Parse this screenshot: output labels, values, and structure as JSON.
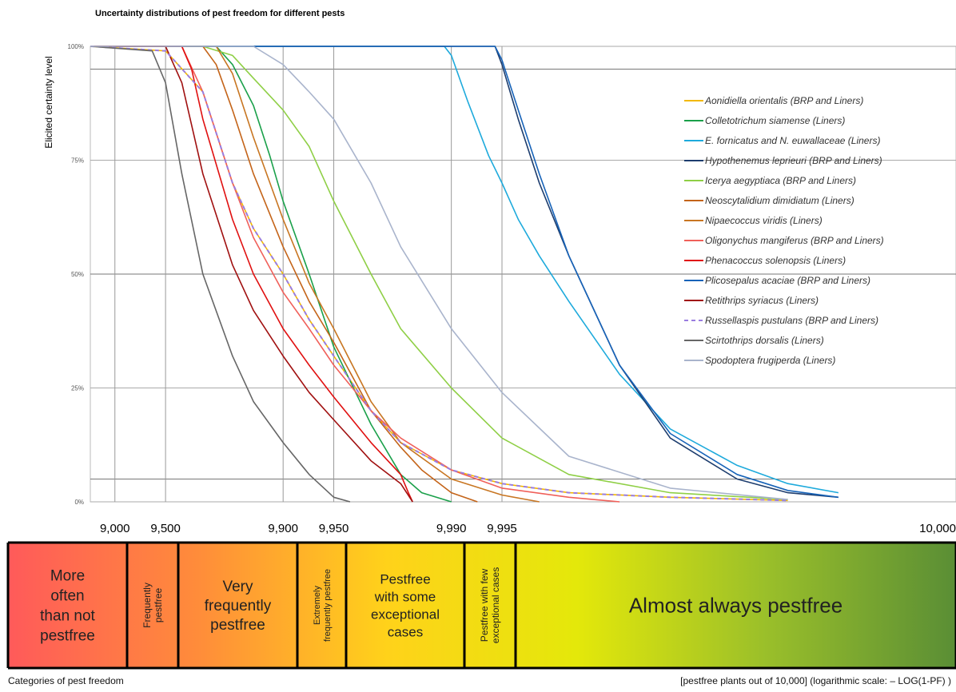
{
  "chart_data": {
    "type": "line",
    "title": "Uncertainty distributions of pest freedom for different pests",
    "ylabel": "Elicited certainty level",
    "ylim": [
      0,
      100
    ],
    "y_ticks": [
      "0%",
      "25%",
      "50%",
      "75%",
      "100%"
    ],
    "y_tick_values": [
      0,
      25,
      50,
      75,
      100
    ],
    "x_scale": "log (–LOG(1-PF))",
    "x_tick_labels": [
      "9,000",
      "9,500",
      "9,900",
      "9,950",
      "9,990",
      "9,995",
      "10,000"
    ],
    "x_tick_values": [
      9000,
      9500,
      9900,
      9950,
      9990,
      9995,
      10000
    ],
    "hlines": [
      95,
      50,
      5
    ],
    "legend_position": "right",
    "series": [
      {
        "name": "Aonidiella orientalis (BRP and Liners)",
        "color": "#f2b800",
        "dash": false,
        "x": [
          8600,
          9500,
          9700,
          9800,
          9850,
          9900,
          9930,
          9950,
          9970,
          9980,
          9990,
          9995,
          9998,
          9999.5,
          9999.9
        ],
        "y": [
          100,
          99,
          90,
          70,
          60,
          50,
          40,
          32,
          20,
          13,
          7,
          4,
          2,
          1,
          0.3
        ]
      },
      {
        "name": "Colletotrichum siamense (Liners)",
        "color": "#1aa04a",
        "dash": false,
        "x": [
          8600,
          9750,
          9800,
          9850,
          9880,
          9900,
          9930,
          9950,
          9970,
          9980,
          9985,
          9990
        ],
        "y": [
          100,
          100,
          96,
          87,
          76,
          66,
          50,
          34,
          17,
          6,
          2,
          0
        ]
      },
      {
        "name": "E. fornicatus and N. euwallaceae  (Liners)",
        "color": "#1eaadc",
        "dash": false,
        "x": [
          8600,
          9989,
          9990,
          9992,
          9994,
          9995,
          9996,
          9997,
          9998,
          9999,
          9999.5,
          9999.8,
          9999.9,
          9999.95
        ],
        "y": [
          100,
          100,
          98,
          88,
          76,
          70,
          62,
          54,
          44,
          28,
          16,
          8,
          4,
          2
        ]
      },
      {
        "name": "Hypothenemus leprieuri (BRP and Liners)",
        "color": "#1d3d6e",
        "dash": false,
        "x": [
          8600,
          9994.5,
          9995,
          9996,
          9997,
          9998,
          9999,
          9999.5,
          9999.8,
          9999.9,
          9999.95
        ],
        "y": [
          100,
          100,
          96,
          84,
          70,
          54,
          30,
          14,
          5,
          2,
          1
        ]
      },
      {
        "name": "Icerya aegyptiaca (BRP and Liners)",
        "color": "#8fcf46",
        "dash": false,
        "x": [
          8600,
          9700,
          9800,
          9850,
          9900,
          9930,
          9950,
          9970,
          9980,
          9990,
          9995,
          9998,
          9999.5,
          9999.9
        ],
        "y": [
          100,
          100,
          98,
          93,
          86,
          78,
          66,
          50,
          38,
          25,
          14,
          6,
          2,
          0.5
        ]
      },
      {
        "name": "Neoscytalidium dimidiatum (Liners)",
        "color": "#c46419",
        "dash": false,
        "x": [
          8600,
          9700,
          9750,
          9800,
          9850,
          9900,
          9930,
          9950,
          9970,
          9980,
          9985,
          9990,
          9993
        ],
        "y": [
          100,
          100,
          96,
          86,
          72,
          56,
          44,
          35,
          20,
          12,
          7,
          2,
          0
        ]
      },
      {
        "name": "Nipaecoccus viridis (Liners)",
        "color": "#c87622",
        "dash": false,
        "x": [
          8600,
          9750,
          9800,
          9850,
          9900,
          9930,
          9950,
          9970,
          9980,
          9990,
          9995,
          9997
        ],
        "y": [
          100,
          100,
          94,
          80,
          62,
          48,
          38,
          22,
          13,
          5,
          1.5,
          0
        ]
      },
      {
        "name": "Oligonychus mangiferus (BRP and Liners)",
        "color": "#f0605a",
        "dash": false,
        "x": [
          8600,
          9600,
          9700,
          9800,
          9850,
          9900,
          9930,
          9950,
          9970,
          9980,
          9990,
          9995,
          9998,
          9999
        ],
        "y": [
          100,
          100,
          90,
          70,
          58,
          46,
          38,
          30,
          20,
          14,
          7,
          3,
          1,
          0
        ]
      },
      {
        "name": "Phenacoccus solenopsis (Liners)",
        "color": "#e01010",
        "dash": false,
        "x": [
          8600,
          9600,
          9650,
          9700,
          9800,
          9850,
          9900,
          9930,
          9950,
          9970,
          9980,
          9982,
          9983
        ],
        "y": [
          100,
          100,
          95,
          84,
          62,
          50,
          38,
          30,
          23,
          13,
          6,
          2,
          0
        ]
      },
      {
        "name": "Plicosepalus acaciae (BRP and Liners)",
        "color": "#1763b8",
        "dash": false,
        "x": [
          8600,
          9994.5,
          9995,
          9996,
          9997,
          9998,
          9999,
          9999.5,
          9999.8,
          9999.9,
          9999.95
        ],
        "y": [
          100,
          100,
          97,
          86,
          72,
          54,
          30,
          15,
          6,
          2.5,
          1
        ]
      },
      {
        "name": "Retithrips syriacus (Liners)",
        "color": "#a01010",
        "dash": false,
        "x": [
          8600,
          9500,
          9600,
          9700,
          9800,
          9850,
          9900,
          9930,
          9950,
          9970,
          9980,
          9983
        ],
        "y": [
          100,
          100,
          92,
          72,
          52,
          42,
          32,
          24,
          18,
          9,
          4,
          0
        ]
      },
      {
        "name": "Russellaspis pustulans (BRP and Liners)",
        "color": "#9a7de0",
        "dash": true,
        "x": [
          8600,
          9500,
          9700,
          9800,
          9850,
          9900,
          9930,
          9950,
          9970,
          9980,
          9990,
          9995,
          9998,
          9999.5,
          9999.9
        ],
        "y": [
          100,
          99,
          90,
          70,
          60,
          50,
          40,
          32,
          20,
          13,
          7,
          4,
          2,
          1,
          0.3
        ]
      },
      {
        "name": "Scirtothrips dorsalis (Liners)",
        "color": "#666666",
        "dash": false,
        "x": [
          8600,
          9400,
          9500,
          9600,
          9700,
          9800,
          9850,
          9900,
          9930,
          9950,
          9960
        ],
        "y": [
          100,
          99,
          92,
          72,
          50,
          32,
          22,
          13,
          6,
          1,
          0
        ]
      },
      {
        "name": "Spodoptera frugiperda (Liners)",
        "color": "#a9b4cc",
        "dash": false,
        "x": [
          8600,
          9850,
          9900,
          9930,
          9950,
          9970,
          9980,
          9990,
          9995,
          9998,
          9999.5,
          9999.9
        ],
        "y": [
          100,
          100,
          96,
          90,
          84,
          70,
          56,
          38,
          24,
          10,
          3,
          0.5
        ]
      }
    ]
  },
  "categories": {
    "header": "Categories of pest freedom",
    "footer": "[pestfree plants out of 10,000] (logarithmic scale: – LOG(1-PF) )",
    "items": [
      {
        "lines": [
          "More",
          "often",
          "than not",
          "pestfree"
        ],
        "vertical": false
      },
      {
        "lines": [
          "Frequently",
          "pestfree"
        ],
        "vertical": true
      },
      {
        "lines": [
          "Very",
          "frequently",
          "pestfree"
        ],
        "vertical": false
      },
      {
        "lines": [
          "Extremely",
          "frequently pestfree"
        ],
        "vertical": true
      },
      {
        "lines": [
          "Pestfree",
          "with some",
          "exceptional",
          "cases"
        ],
        "vertical": false
      },
      {
        "lines": [
          "Pestfree with few",
          "exceptional cases"
        ],
        "vertical": true
      },
      {
        "lines": [
          "Almost always pestfree"
        ],
        "vertical": false
      }
    ],
    "gradient_colors": [
      "#ff5a5a",
      "#ff8c3a",
      "#ffd21a",
      "#e4e80a",
      "#9abf2a",
      "#5a8e35"
    ]
  }
}
